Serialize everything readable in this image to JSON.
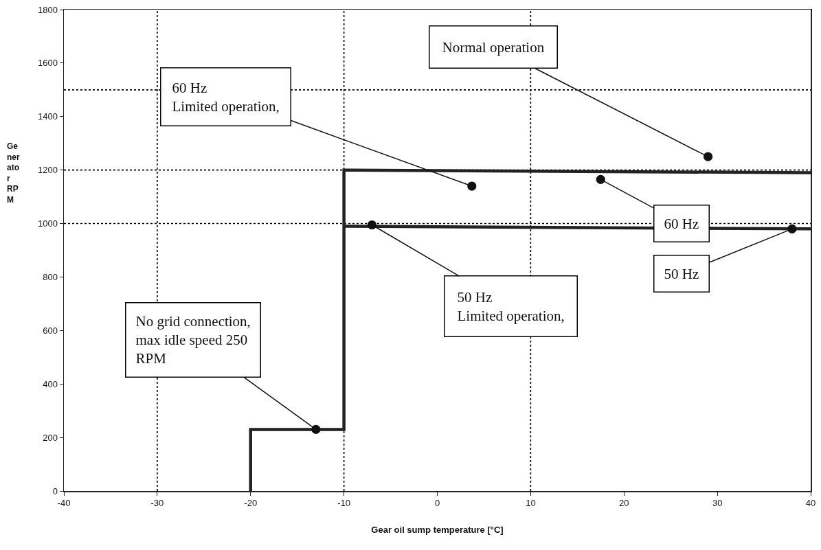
{
  "chart_data": {
    "type": "line",
    "xlabel": "Gear oil sump temperature [°C]",
    "ylabel": "Ge\nner\nato\nr\nRP\nM",
    "xlim": [
      -40,
      40
    ],
    "xticks": [
      -40,
      -30,
      -20,
      -10,
      0,
      10,
      20,
      30,
      40
    ],
    "ylim": [
      0,
      1800
    ],
    "yticks": [
      0,
      200,
      400,
      600,
      800,
      1000,
      1200,
      1400,
      1600,
      1800
    ],
    "grid": false,
    "marker": "none",
    "line_style": "solid",
    "series": [
      {
        "color": "#222222",
        "x": [
          -20,
          -20,
          -10,
          -10,
          40
        ],
        "values": [
          0,
          230,
          230,
          1200,
          1190
        ]
      },
      {
        "color": "#222222",
        "x": [
          -10,
          40
        ],
        "values": [
          990,
          980
        ]
      }
    ],
    "ref_lines": [
      {
        "axis": "x",
        "value": -30,
        "color": "#000000",
        "line_style": "dotted"
      },
      {
        "axis": "x",
        "value": -10,
        "color": "#000000",
        "line_style": "dotted"
      },
      {
        "axis": "x",
        "value": 10,
        "color": "#000000",
        "line_style": "dotted"
      },
      {
        "axis": "y",
        "value": 1000,
        "color": "#000000",
        "line_style": "dotted"
      },
      {
        "axis": "y",
        "value": 1200,
        "color": "#000000",
        "line_style": "dotted"
      },
      {
        "axis": "y",
        "value": 1500,
        "color": "#000000",
        "line_style": "dotted"
      }
    ],
    "annotations": [
      {
        "text": "Normal operation",
        "x": 29,
        "y": 1250
      },
      {
        "text": "60 Hz\nLimited operation,",
        "x": 3.7,
        "y": 1140
      },
      {
        "text": "60 Hz",
        "x": 17.5,
        "y": 1165
      },
      {
        "text": "50 Hz",
        "x": 38,
        "y": 980
      },
      {
        "text": "50 Hz\nLimited operation,",
        "x": -7,
        "y": 995
      },
      {
        "text": "No grid connection,\nmax idle speed 250\nRPM",
        "x": -13,
        "y": 230
      }
    ]
  }
}
